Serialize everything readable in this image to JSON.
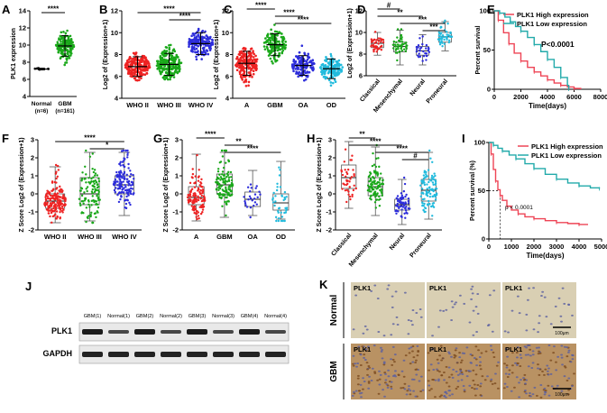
{
  "chart_data": [
    {
      "panel": "A",
      "type": "scatter",
      "ylabel": "PLK1 expression",
      "ylim": [
        4,
        14
      ],
      "yticks": [
        4,
        6,
        8,
        10,
        12,
        14
      ],
      "categories": [
        "Normal",
        "GBM"
      ],
      "sub_labels": [
        "(n=6)",
        "(n=161)"
      ],
      "colors": [
        "#000000",
        "#1aa81a"
      ],
      "series": [
        {
          "name": "Normal",
          "n": 6,
          "mean": 7.2,
          "sd": 0.1
        },
        {
          "name": "GBM",
          "n": 161,
          "mean": 9.9,
          "sd": 1.2
        }
      ],
      "significance": [
        {
          "pair": [
            0,
            1
          ],
          "label": "****"
        }
      ]
    },
    {
      "panel": "B",
      "type": "scatter",
      "ylabel": "Log2 of (Expression+1)",
      "ylim": [
        4,
        12
      ],
      "yticks": [
        4,
        6,
        8,
        10,
        12
      ],
      "categories": [
        "WHO II",
        "WHO III",
        "WHO IV"
      ],
      "colors": [
        "#ee2222",
        "#1aa81a",
        "#2d2ddb"
      ],
      "series": [
        {
          "name": "WHO II",
          "n": 220,
          "mean": 6.9,
          "sd": 0.9
        },
        {
          "name": "WHO III",
          "n": 240,
          "mean": 7.1,
          "sd": 1.0
        },
        {
          "name": "WHO IV",
          "n": 160,
          "mean": 9.0,
          "sd": 1.0
        }
      ],
      "significance": [
        {
          "pair": [
            0,
            2
          ],
          "label": "****"
        },
        {
          "pair": [
            1,
            2
          ],
          "label": "****"
        }
      ]
    },
    {
      "panel": "C",
      "type": "scatter",
      "ylabel": "Log2 of (Expression+1)",
      "ylim": [
        4,
        12
      ],
      "yticks": [
        4,
        6,
        8,
        10,
        12
      ],
      "categories": [
        "A",
        "GBM",
        "OA",
        "OD"
      ],
      "colors": [
        "#ee2222",
        "#1aa81a",
        "#2d2ddb",
        "#22bbdd"
      ],
      "series": [
        {
          "name": "A",
          "n": 180,
          "mean": 7.2,
          "sd": 1.1
        },
        {
          "name": "GBM",
          "n": 160,
          "mean": 8.9,
          "sd": 1.0
        },
        {
          "name": "OA",
          "n": 130,
          "mean": 7.0,
          "sd": 0.9
        },
        {
          "name": "OD",
          "n": 150,
          "mean": 6.7,
          "sd": 0.9
        }
      ],
      "significance": [
        {
          "pair": [
            0,
            1
          ],
          "label": "****"
        },
        {
          "pair": [
            1,
            2
          ],
          "label": "****"
        },
        {
          "pair": [
            1,
            3
          ],
          "label": "****"
        }
      ]
    },
    {
      "panel": "D",
      "type": "box",
      "ylabel": "Log2 of (Expression+1)",
      "ylim": [
        6,
        12
      ],
      "yticks": [
        6,
        8,
        10,
        12
      ],
      "categories": [
        "Classical",
        "Mesenchymal",
        "Neural",
        "Proneural"
      ],
      "colors": [
        "#ee2222",
        "#1aa81a",
        "#2d2ddb",
        "#22bbdd"
      ],
      "series": [
        {
          "name": "Classical",
          "n": 40,
          "q1": 8.6,
          "median": 9.0,
          "q3": 9.3,
          "min": 7.9,
          "max": 10.0
        },
        {
          "name": "Mesenchymal",
          "n": 50,
          "q1": 8.2,
          "median": 8.7,
          "q3": 9.1,
          "min": 7.0,
          "max": 10.2
        },
        {
          "name": "Neural",
          "n": 30,
          "q1": 7.9,
          "median": 8.3,
          "q3": 8.7,
          "min": 7.0,
          "max": 9.8
        },
        {
          "name": "Proneural",
          "n": 45,
          "q1": 9.1,
          "median": 9.6,
          "q3": 10.0,
          "min": 8.3,
          "max": 11.0
        }
      ],
      "significance": [
        {
          "pair": [
            0,
            1
          ],
          "label": "#"
        },
        {
          "pair": [
            0,
            2
          ],
          "label": "**"
        },
        {
          "pair": [
            1,
            3
          ],
          "label": "***"
        },
        {
          "pair": [
            2,
            3
          ],
          "label": "***"
        }
      ]
    },
    {
      "panel": "E",
      "type": "line",
      "xlabel": "Time(days)",
      "ylabel": "Percent survival",
      "xlim": [
        0,
        8000
      ],
      "xticks": [
        0,
        2000,
        4000,
        6000,
        8000
      ],
      "ylim": [
        0,
        100
      ],
      "yticks": [
        0,
        50,
        100
      ],
      "series": [
        {
          "name": "PLK1 High expression",
          "color": "#ee4455",
          "x": [
            0,
            300,
            700,
            1100,
            1500,
            2000,
            2500,
            3000,
            3500,
            4000,
            4500,
            5000,
            5500,
            6000,
            6500
          ],
          "y": [
            100,
            88,
            72,
            58,
            46,
            36,
            28,
            22,
            17,
            12,
            8,
            5,
            3,
            1,
            0
          ]
        },
        {
          "name": "PLK1 Low expression",
          "color": "#22aaaa",
          "x": [
            0,
            400,
            800,
            1200,
            1600,
            2000,
            2500,
            3000,
            3500,
            4000,
            4500,
            5000,
            5500,
            5600
          ],
          "y": [
            100,
            97,
            92,
            86,
            80,
            74,
            66,
            57,
            48,
            38,
            28,
            15,
            5,
            0
          ]
        }
      ],
      "annotation": "P<0.0001"
    },
    {
      "panel": "F",
      "type": "box",
      "ylabel": "Z Score Log2 of (Expression+1)",
      "ylim": [
        -2,
        3
      ],
      "yticks": [
        -2,
        -1,
        0,
        1,
        2,
        3
      ],
      "categories": [
        "WHO II",
        "WHO III",
        "WHO IV"
      ],
      "colors": [
        "#ee2222",
        "#1aa81a",
        "#2d2ddb"
      ],
      "series": [
        {
          "name": "WHO II",
          "n": 180,
          "q1": -0.8,
          "median": -0.4,
          "q3": 0.0,
          "min": -1.6,
          "max": 1.5
        },
        {
          "name": "WHO III",
          "n": 110,
          "q1": -0.6,
          "median": 0.0,
          "q3": 0.9,
          "min": -1.5,
          "max": 2.3
        },
        {
          "name": "WHO IV",
          "n": 140,
          "q1": 0.0,
          "median": 0.5,
          "q3": 1.0,
          "min": -1.2,
          "max": 2.3
        }
      ],
      "significance": [
        {
          "pair": [
            0,
            2
          ],
          "label": "****"
        },
        {
          "pair": [
            1,
            2
          ],
          "label": "*"
        }
      ]
    },
    {
      "panel": "G",
      "type": "box",
      "ylabel": "Z Score Log2 of (Expression+1)",
      "ylim": [
        -2,
        3
      ],
      "yticks": [
        -2,
        -1,
        0,
        1,
        2,
        3
      ],
      "categories": [
        "A",
        "GBM",
        "OA",
        "OD"
      ],
      "colors": [
        "#ee2222",
        "#1aa81a",
        "#2d2ddb",
        "#22bbdd"
      ],
      "series": [
        {
          "name": "A",
          "n": 120,
          "q1": -0.6,
          "median": -0.2,
          "q3": 0.4,
          "min": -1.5,
          "max": 2.2
        },
        {
          "name": "GBM",
          "n": 130,
          "q1": 0.0,
          "median": 0.5,
          "q3": 1.1,
          "min": -1.3,
          "max": 2.3
        },
        {
          "name": "OA",
          "n": 25,
          "q1": -0.7,
          "median": -0.3,
          "q3": 0.1,
          "min": -1.2,
          "max": 1.3
        },
        {
          "name": "OD",
          "n": 40,
          "q1": -0.9,
          "median": -0.5,
          "q3": 0.0,
          "min": -1.4,
          "max": 1.8
        }
      ],
      "significance": [
        {
          "pair": [
            0,
            1
          ],
          "label": "****"
        },
        {
          "pair": [
            1,
            2
          ],
          "label": "**"
        },
        {
          "pair": [
            1,
            3
          ],
          "label": "****"
        }
      ]
    },
    {
      "panel": "H",
      "type": "box",
      "ylabel": "Z Score Log2 of (Expression+1)",
      "ylim": [
        -2,
        3
      ],
      "yticks": [
        -2,
        -1,
        0,
        1,
        2,
        3
      ],
      "categories": [
        "Classical",
        "Mesenchymal",
        "Neural",
        "Proneural"
      ],
      "colors": [
        "#ee2222",
        "#1aa81a",
        "#2d2ddb",
        "#22bbdd"
      ],
      "series": [
        {
          "name": "Classical",
          "n": 40,
          "q1": 0.3,
          "median": 0.9,
          "q3": 1.6,
          "min": -0.8,
          "max": 2.9
        },
        {
          "name": "Mesenchymal",
          "n": 100,
          "q1": -0.1,
          "median": 0.4,
          "q3": 0.9,
          "min": -1.2,
          "max": 2.6
        },
        {
          "name": "Neural",
          "n": 60,
          "q1": -0.9,
          "median": -0.6,
          "q3": -0.3,
          "min": -1.7,
          "max": 0.8
        },
        {
          "name": "Proneural",
          "n": 100,
          "q1": -0.4,
          "median": 0.2,
          "q3": 0.8,
          "min": -1.4,
          "max": 2.3
        }
      ],
      "significance": [
        {
          "pair": [
            0,
            1
          ],
          "label": "**"
        },
        {
          "pair": [
            0,
            2
          ],
          "label": "****"
        },
        {
          "pair": [
            1,
            3
          ],
          "label": "****"
        },
        {
          "pair": [
            2,
            3
          ],
          "label": "#"
        }
      ]
    },
    {
      "panel": "I",
      "type": "line",
      "xlabel": "Time(days)",
      "ylabel": "Percent survival (%)",
      "xlim": [
        0,
        5000
      ],
      "xticks": [
        0,
        1000,
        2000,
        3000,
        4000,
        5000
      ],
      "ylim": [
        0,
        100
      ],
      "yticks": [
        0,
        50,
        100
      ],
      "series": [
        {
          "name": "PLK1 High expression",
          "color": "#ee4455",
          "x": [
            0,
            100,
            200,
            300,
            400,
            500,
            600,
            800,
            1000,
            1300,
            1600,
            2000,
            2500,
            3000,
            3500,
            4000,
            4400
          ],
          "y": [
            100,
            88,
            72,
            60,
            51,
            45,
            40,
            34,
            30,
            26,
            23,
            21,
            19,
            17,
            16,
            15,
            15
          ]
        },
        {
          "name": "PLK1 Low expression",
          "color": "#22aaaa",
          "x": [
            0,
            200,
            400,
            600,
            900,
            1200,
            1600,
            2000,
            2500,
            3000,
            3500,
            4000,
            4500,
            4900
          ],
          "y": [
            100,
            97,
            94,
            91,
            87,
            83,
            78,
            73,
            67,
            62,
            58,
            55,
            53,
            52
          ]
        }
      ],
      "annotation": "p < 0.0001",
      "median_survival_x": 500
    }
  ],
  "western_blot": {
    "panel": "J",
    "lanes": [
      "GBM(1)",
      "Normal(1)",
      "GBM(2)",
      "Normal(2)",
      "GBM(3)",
      "Normal(3)",
      "GBM(4)",
      "Normal(4)"
    ],
    "rows": [
      "PLK1",
      "GAPDH"
    ]
  },
  "ihc": {
    "panel": "K",
    "rows": [
      "Normal",
      "GBM"
    ],
    "cell_label": "PLK1",
    "scale_bar": "100μm"
  },
  "theme": {
    "box_fill": "#ffffff",
    "axis_color": "#000000",
    "tissue_normal": "#d9cfb3",
    "tissue_gbm": "#b99263",
    "blot_bg": "#e9e9e9"
  }
}
